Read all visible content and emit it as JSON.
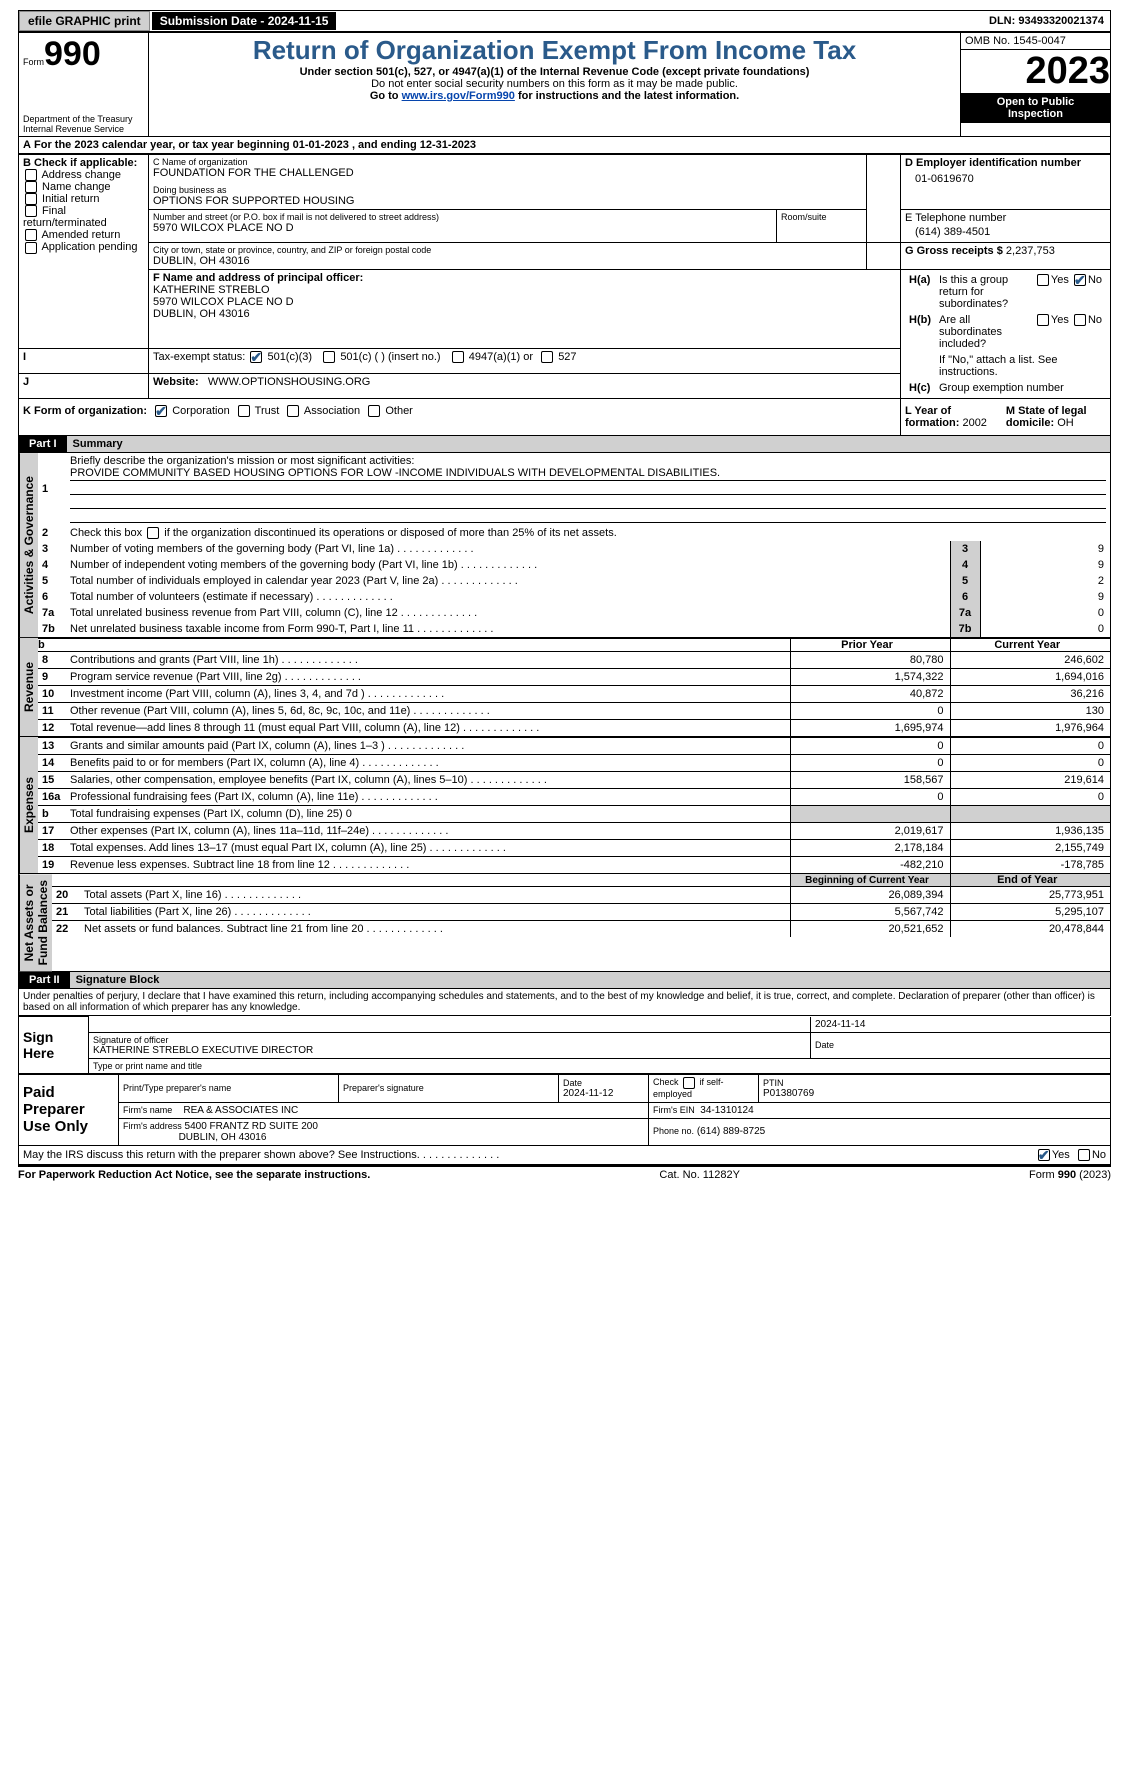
{
  "topbar": {
    "efile": "efile GRAPHIC print",
    "submission": "Submission Date - 2024-11-15",
    "dln_label": "DLN:",
    "dln": "93493320021374"
  },
  "header": {
    "form_word": "Form",
    "form_num": "990",
    "dept": "Department of the Treasury\nInternal Revenue Service",
    "title": "Return of Organization Exempt From Income Tax",
    "sub1": "Under section 501(c), 527, or 4947(a)(1) of the Internal Revenue Code (except private foundations)",
    "sub2": "Do not enter social security numbers on this form as it may be made public.",
    "sub3_pre": "Go to ",
    "sub3_link": "www.irs.gov/Form990",
    "sub3_post": " for instructions and the latest information.",
    "omb": "OMB No. 1545-0047",
    "year": "2023",
    "inspect": "Open to Public\nInspection"
  },
  "A": {
    "text": "For the 2023 calendar year, or tax year beginning 01-01-2023    , and ending 12-31-2023",
    "prefix": "A"
  },
  "B": {
    "title": "B Check if applicable:",
    "items": [
      "Address change",
      "Name change",
      "Initial return",
      "Final return/terminated",
      "Amended return",
      "Application pending"
    ]
  },
  "C": {
    "name_label": "C Name of organization",
    "name": "FOUNDATION FOR THE CHALLENGED",
    "dba_label": "Doing business as",
    "dba": "OPTIONS FOR SUPPORTED HOUSING",
    "addr_label": "Number and street (or P.O. box if mail is not delivered to street address)",
    "addr": "5970 WILCOX PLACE NO D",
    "room_label": "Room/suite",
    "city_label": "City or town, state or province, country, and ZIP or foreign postal code",
    "city": "DUBLIN, OH  43016"
  },
  "D": {
    "label": "D Employer identification number",
    "value": "01-0619670"
  },
  "E": {
    "label": "E Telephone number",
    "value": "(614) 389-4501"
  },
  "G": {
    "label": "G Gross receipts $",
    "value": "2,237,753"
  },
  "F": {
    "label": "F  Name and address of principal officer:",
    "name": "KATHERINE STREBLO",
    "addr1": "5970 WILCOX PLACE NO D",
    "addr2": "DUBLIN, OH  43016"
  },
  "H": {
    "a": "Is this a group return for subordinates?",
    "b": "Are all subordinates included?",
    "b_note": "If \"No,\" attach a list. See instructions.",
    "c": "Group exemption number",
    "yes": "Yes",
    "no": "No",
    "ha_no_checked": true
  },
  "I": {
    "label": "Tax-exempt status:",
    "opt1": "501(c)(3)",
    "opt2": "501(c) (  ) (insert no.)",
    "opt3": "4947(a)(1) or",
    "opt4": "527"
  },
  "J": {
    "label": "Website:",
    "value": "WWW.OPTIONSHOUSING.ORG"
  },
  "K": {
    "label": "K Form of organization:",
    "opts": [
      "Corporation",
      "Trust",
      "Association",
      "Other"
    ]
  },
  "L": {
    "label": "L Year of formation:",
    "value": "2002"
  },
  "M": {
    "label": "M State of legal domicile:",
    "value": "OH"
  },
  "part1": {
    "hdr": "Part I",
    "title": "Summary",
    "side_ag": "Activities & Governance",
    "side_rev": "Revenue",
    "side_exp": "Expenses",
    "side_na": "Net Assets or\nFund Balances",
    "l1_label": "Briefly describe the organization's mission or most significant activities:",
    "l1_text": "PROVIDE COMMUNITY BASED HOUSING OPTIONS FOR LOW -INCOME INDIVIDUALS WITH DEVELOPMENTAL DISABILITIES.",
    "l2": "Check this box      if the organization discontinued its operations or disposed of more than 25% of its net assets.",
    "lines_ag": [
      {
        "n": "3",
        "t": "Number of voting members of the governing body (Part VI, line 1a)",
        "v": "9"
      },
      {
        "n": "4",
        "t": "Number of independent voting members of the governing body (Part VI, line 1b)",
        "v": "9"
      },
      {
        "n": "5",
        "t": "Total number of individuals employed in calendar year 2023 (Part V, line 2a)",
        "v": "2"
      },
      {
        "n": "6",
        "t": "Total number of volunteers (estimate if necessary)",
        "v": "9"
      },
      {
        "n": "7a",
        "t": "Total unrelated business revenue from Part VIII, column (C), line 12",
        "v": "0"
      },
      {
        "n": "7b",
        "t": "Net unrelated business taxable income from Form 990-T, Part I, line 11",
        "v": "0"
      }
    ],
    "col_prior": "Prior Year",
    "col_curr": "Current Year",
    "lines_rev": [
      {
        "n": "8",
        "t": "Contributions and grants (Part VIII, line 1h)",
        "p": "80,780",
        "c": "246,602"
      },
      {
        "n": "9",
        "t": "Program service revenue (Part VIII, line 2g)",
        "p": "1,574,322",
        "c": "1,694,016"
      },
      {
        "n": "10",
        "t": "Investment income (Part VIII, column (A), lines 3, 4, and 7d )",
        "p": "40,872",
        "c": "36,216"
      },
      {
        "n": "11",
        "t": "Other revenue (Part VIII, column (A), lines 5, 6d, 8c, 9c, 10c, and 11e)",
        "p": "0",
        "c": "130"
      },
      {
        "n": "12",
        "t": "Total revenue—add lines 8 through 11 (must equal Part VIII, column (A), line 12)",
        "p": "1,695,974",
        "c": "1,976,964"
      }
    ],
    "lines_exp": [
      {
        "n": "13",
        "t": "Grants and similar amounts paid (Part IX, column (A), lines 1–3 )",
        "p": "0",
        "c": "0"
      },
      {
        "n": "14",
        "t": "Benefits paid to or for members (Part IX, column (A), line 4)",
        "p": "0",
        "c": "0"
      },
      {
        "n": "15",
        "t": "Salaries, other compensation, employee benefits (Part IX, column (A), lines 5–10)",
        "p": "158,567",
        "c": "219,614"
      },
      {
        "n": "16a",
        "t": "Professional fundraising fees (Part IX, column (A), line 11e)",
        "p": "0",
        "c": "0"
      },
      {
        "n": "b",
        "t": "Total fundraising expenses (Part IX, column (D), line 25) 0",
        "p": "",
        "c": "",
        "grey": true
      },
      {
        "n": "17",
        "t": "Other expenses (Part IX, column (A), lines 11a–11d, 11f–24e)",
        "p": "2,019,617",
        "c": "1,936,135"
      },
      {
        "n": "18",
        "t": "Total expenses. Add lines 13–17 (must equal Part IX, column (A), line 25)",
        "p": "2,178,184",
        "c": "2,155,749"
      },
      {
        "n": "19",
        "t": "Revenue less expenses. Subtract line 18 from line 12",
        "p": "-482,210",
        "c": "-178,785"
      }
    ],
    "col_beg": "Beginning of Current Year",
    "col_end": "End of Year",
    "lines_na": [
      {
        "n": "20",
        "t": "Total assets (Part X, line 16)",
        "p": "26,089,394",
        "c": "25,773,951"
      },
      {
        "n": "21",
        "t": "Total liabilities (Part X, line 26)",
        "p": "5,567,742",
        "c": "5,295,107"
      },
      {
        "n": "22",
        "t": "Net assets or fund balances. Subtract line 21 from line 20",
        "p": "20,521,652",
        "c": "20,478,844"
      }
    ]
  },
  "part2": {
    "hdr": "Part II",
    "title": "Signature Block",
    "decl": "Under penalties of perjury, I declare that I have examined this return, including accompanying schedules and statements, and to the best of my knowledge and belief, it is true, correct, and complete. Declaration of preparer (other than officer) is based on all information of which preparer has any knowledge.",
    "sign_here": "Sign\nHere",
    "sig_date": "2024-11-14",
    "sig_officer_label": "Signature of officer",
    "sig_officer": "KATHERINE STREBLO  EXECUTIVE DIRECTOR",
    "type_label": "Type or print name and title",
    "date_label": "Date",
    "paid": "Paid\nPreparer\nUse Only",
    "prep_name_label": "Print/Type preparer's name",
    "prep_sig_label": "Preparer's signature",
    "prep_date": "2024-11-12",
    "check_self": "Check        if self-employed",
    "ptin_label": "PTIN",
    "ptin": "P01380769",
    "firm_name_label": "Firm's name",
    "firm_name": "REA & ASSOCIATES INC",
    "firm_ein_label": "Firm's EIN",
    "firm_ein": "34-1310124",
    "firm_addr_label": "Firm's address",
    "firm_addr1": "5400 FRANTZ RD SUITE 200",
    "firm_addr2": "DUBLIN, OH  43016",
    "phone_label": "Phone no.",
    "phone": "(614) 889-8725",
    "discuss": "May the IRS discuss this return with the preparer shown above? See Instructions.",
    "yes": "Yes",
    "no": "No"
  },
  "footer": {
    "left": "For Paperwork Reduction Act Notice, see the separate instructions.",
    "mid": "Cat. No. 11282Y",
    "right_pre": "Form ",
    "right_num": "990",
    "right_post": " (2023)"
  },
  "colors": {
    "link": "#0645ad",
    "heading": "#2a5a8a",
    "grey": "#d0d0d0"
  }
}
